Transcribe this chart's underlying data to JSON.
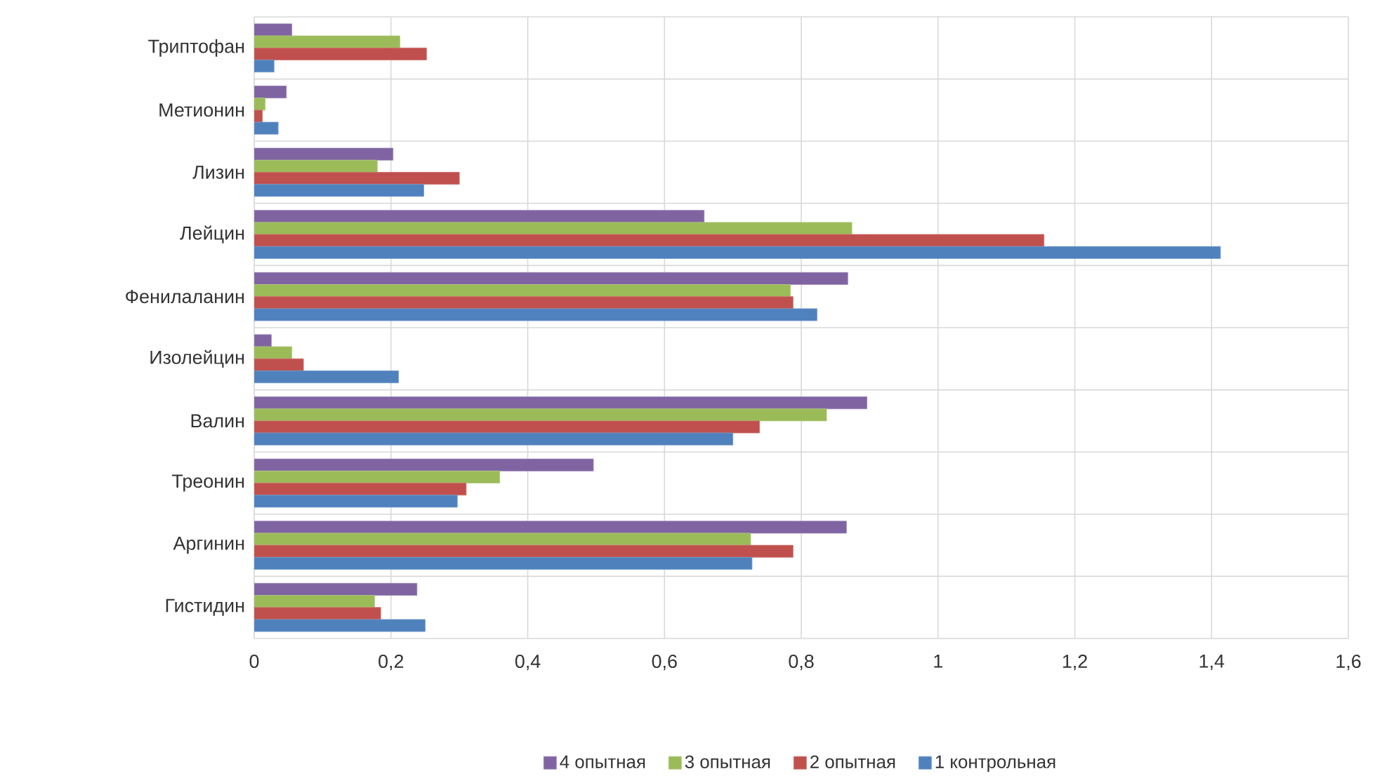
{
  "chart_data": {
    "type": "bar",
    "orientation": "horizontal",
    "categories": [
      "Триптофан",
      "Метионин",
      "Лизин",
      "Лейцин",
      "Фенилаланин",
      "Изолейцин",
      "Валин",
      "Треонин",
      "Аргинин",
      "Гистидин"
    ],
    "series": [
      {
        "name": "4 опытная",
        "color": "#8064a2",
        "values": [
          0.055,
          0.047,
          0.203,
          0.658,
          0.868,
          0.025,
          0.896,
          0.496,
          0.866,
          0.238
        ]
      },
      {
        "name": "3 опытная",
        "color": "#9bbb59",
        "values": [
          0.213,
          0.016,
          0.18,
          0.874,
          0.784,
          0.055,
          0.837,
          0.359,
          0.726,
          0.176
        ]
      },
      {
        "name": "2 опытная",
        "color": "#c0504d",
        "values": [
          0.252,
          0.012,
          0.3,
          1.155,
          0.788,
          0.072,
          0.739,
          0.31,
          0.788,
          0.185
        ]
      },
      {
        "name": "1 контрольная",
        "color": "#4f81bd",
        "values": [
          0.029,
          0.035,
          0.248,
          1.413,
          0.823,
          0.211,
          0.7,
          0.297,
          0.728,
          0.25
        ]
      }
    ],
    "xlim": [
      0,
      1.6
    ],
    "xticks": [
      0,
      {
        "value": 0.2,
        "label": "0,2"
      },
      {
        "value": 0.4,
        "label": "0,4"
      },
      {
        "value": 0.6,
        "label": "0,6"
      },
      {
        "value": 0.8,
        "label": "0,8"
      },
      1,
      {
        "value": 1.2,
        "label": "1,2"
      },
      {
        "value": 1.4,
        "label": "1,4"
      },
      {
        "value": 1.6,
        "label": "1,6"
      }
    ],
    "grid": true,
    "legend": "bottom"
  }
}
